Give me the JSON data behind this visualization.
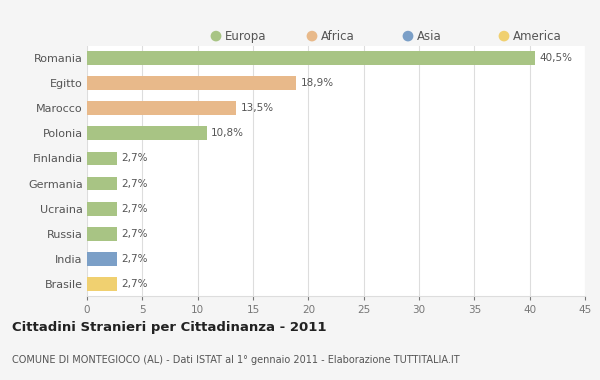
{
  "countries": [
    "Romania",
    "Egitto",
    "Marocco",
    "Polonia",
    "Finlandia",
    "Germania",
    "Ucraina",
    "Russia",
    "India",
    "Brasile"
  ],
  "values": [
    40.5,
    18.9,
    13.5,
    10.8,
    2.7,
    2.7,
    2.7,
    2.7,
    2.7,
    2.7
  ],
  "labels": [
    "40,5%",
    "18,9%",
    "13,5%",
    "10,8%",
    "2,7%",
    "2,7%",
    "2,7%",
    "2,7%",
    "2,7%",
    "2,7%"
  ],
  "colors": [
    "#a8c484",
    "#e8b98a",
    "#e8b98a",
    "#a8c484",
    "#a8c484",
    "#a8c484",
    "#a8c484",
    "#a8c484",
    "#7b9fc7",
    "#f0d070"
  ],
  "legend_labels": [
    "Europa",
    "Africa",
    "Asia",
    "America"
  ],
  "legend_colors": [
    "#a8c484",
    "#e8b98a",
    "#7b9fc7",
    "#f0d070"
  ],
  "title": "Cittadini Stranieri per Cittadinanza - 2011",
  "subtitle": "COMUNE DI MONTEGIOCO (AL) - Dati ISTAT al 1° gennaio 2011 - Elaborazione TUTTITALIA.IT",
  "xlim": [
    0,
    45
  ],
  "xticks": [
    0,
    5,
    10,
    15,
    20,
    25,
    30,
    35,
    40,
    45
  ],
  "background_color": "#f5f5f5",
  "plot_background": "#ffffff",
  "grid_color": "#dddddd",
  "bar_height": 0.55
}
